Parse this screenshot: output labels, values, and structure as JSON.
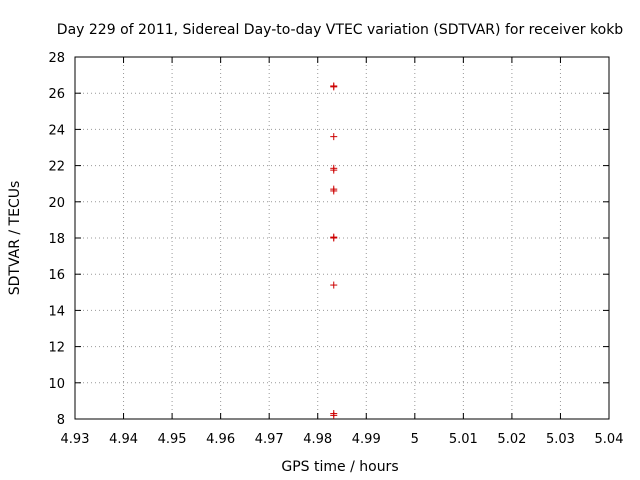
{
  "chart_data": {
    "type": "scatter",
    "title": "Day 229 of 2011, Sidereal Day-to-day VTEC variation (SDTVAR) for receiver kokb",
    "xlabel": "GPS time / hours",
    "ylabel": "SDTVAR / TECUs",
    "xlim": [
      4.93,
      5.04
    ],
    "ylim": [
      8,
      28
    ],
    "x_ticks": [
      "4.93",
      "4.94",
      "4.95",
      "4.96",
      "4.97",
      "4.98",
      "4.99",
      "5",
      "5.01",
      "5.02",
      "5.03",
      "5.04"
    ],
    "y_ticks": [
      "8",
      "10",
      "12",
      "14",
      "16",
      "18",
      "20",
      "22",
      "24",
      "26",
      "28"
    ],
    "grid": true,
    "marker": "+",
    "color": "#cc0000",
    "series": [
      {
        "name": "SDTVAR",
        "points": [
          {
            "x": 4.9833,
            "y": 26.4
          },
          {
            "x": 4.9833,
            "y": 26.35
          },
          {
            "x": 4.9833,
            "y": 23.6
          },
          {
            "x": 4.9833,
            "y": 21.85
          },
          {
            "x": 4.9833,
            "y": 21.75
          },
          {
            "x": 4.9833,
            "y": 20.7
          },
          {
            "x": 4.9833,
            "y": 20.6
          },
          {
            "x": 4.9833,
            "y": 18.05
          },
          {
            "x": 4.9833,
            "y": 18.0
          },
          {
            "x": 4.9833,
            "y": 15.4
          },
          {
            "x": 4.9833,
            "y": 8.3
          },
          {
            "x": 4.9833,
            "y": 8.2
          }
        ]
      }
    ]
  }
}
